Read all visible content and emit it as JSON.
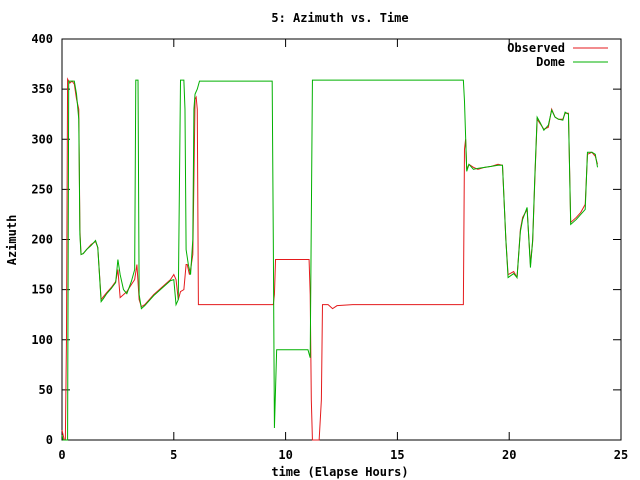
{
  "chart_data": {
    "type": "line",
    "title": "5: Azimuth vs. Time",
    "xlabel": "time (Elapse Hours)",
    "ylabel": "Azimuth",
    "xlim": [
      0,
      25
    ],
    "ylim": [
      0,
      400
    ],
    "xticks": [
      0,
      5,
      10,
      15,
      20,
      25
    ],
    "yticks": [
      0,
      50,
      100,
      150,
      200,
      250,
      300,
      350,
      400
    ],
    "grid": false,
    "legend_position": "top-right",
    "series": [
      {
        "name": "Observed",
        "color": "#e41a1c",
        "points": [
          [
            0.0,
            10
          ],
          [
            0.05,
            5
          ],
          [
            0.1,
            0
          ],
          [
            0.15,
            0
          ],
          [
            0.2,
            100
          ],
          [
            0.25,
            360
          ],
          [
            0.3,
            358
          ],
          [
            0.35,
            356
          ],
          [
            0.45,
            358
          ],
          [
            0.55,
            355
          ],
          [
            0.65,
            340
          ],
          [
            0.75,
            330
          ],
          [
            0.8,
            210
          ],
          [
            0.85,
            185
          ],
          [
            0.95,
            186
          ],
          [
            1.1,
            190
          ],
          [
            1.3,
            195
          ],
          [
            1.5,
            198
          ],
          [
            1.6,
            192
          ],
          [
            1.75,
            140
          ],
          [
            1.85,
            143
          ],
          [
            2.0,
            147
          ],
          [
            2.2,
            152
          ],
          [
            2.4,
            158
          ],
          [
            2.5,
            170
          ],
          [
            2.6,
            142
          ],
          [
            2.75,
            145
          ],
          [
            2.9,
            148
          ],
          [
            3.1,
            155
          ],
          [
            3.25,
            160
          ],
          [
            3.35,
            175
          ],
          [
            3.45,
            140
          ],
          [
            3.55,
            133
          ],
          [
            3.7,
            135
          ],
          [
            3.9,
            140
          ],
          [
            4.1,
            145
          ],
          [
            4.35,
            150
          ],
          [
            4.6,
            155
          ],
          [
            4.85,
            160
          ],
          [
            5.0,
            165
          ],
          [
            5.1,
            160
          ],
          [
            5.2,
            140
          ],
          [
            5.3,
            148
          ],
          [
            5.45,
            150
          ],
          [
            5.55,
            175
          ],
          [
            5.6,
            175
          ],
          [
            5.7,
            165
          ],
          [
            5.75,
            170
          ],
          [
            5.85,
            185
          ],
          [
            5.9,
            260
          ],
          [
            5.95,
            340
          ],
          [
            6.0,
            342
          ],
          [
            6.05,
            330
          ],
          [
            6.1,
            135
          ],
          [
            6.6,
            135
          ],
          [
            7.5,
            135
          ],
          [
            8.5,
            135
          ],
          [
            9.45,
            135
          ],
          [
            9.5,
            145
          ],
          [
            9.55,
            180
          ],
          [
            10.5,
            180
          ],
          [
            11.0,
            180
          ],
          [
            11.05,
            180
          ],
          [
            11.1,
            145
          ],
          [
            11.15,
            40
          ],
          [
            11.2,
            0
          ],
          [
            11.5,
            0
          ],
          [
            11.6,
            40
          ],
          [
            11.65,
            135
          ],
          [
            11.9,
            135
          ],
          [
            12.1,
            131
          ],
          [
            12.3,
            134
          ],
          [
            13.0,
            135
          ],
          [
            14.5,
            135
          ],
          [
            16.0,
            135
          ],
          [
            17.5,
            135
          ],
          [
            17.95,
            135
          ],
          [
            18.0,
            290
          ],
          [
            18.05,
            300
          ],
          [
            18.1,
            270
          ],
          [
            18.2,
            275
          ],
          [
            18.4,
            272
          ],
          [
            18.6,
            270
          ],
          [
            18.9,
            272
          ],
          [
            19.2,
            273
          ],
          [
            19.5,
            275
          ],
          [
            19.7,
            274
          ],
          [
            19.85,
            200
          ],
          [
            19.95,
            165
          ],
          [
            20.2,
            168
          ],
          [
            20.35,
            162
          ],
          [
            20.5,
            210
          ],
          [
            20.6,
            222
          ],
          [
            20.8,
            230
          ],
          [
            20.95,
            175
          ],
          [
            21.05,
            198
          ],
          [
            21.15,
            262
          ],
          [
            21.25,
            320
          ],
          [
            21.4,
            315
          ],
          [
            21.55,
            310
          ],
          [
            21.75,
            312
          ],
          [
            21.9,
            330
          ],
          [
            22.05,
            322
          ],
          [
            22.2,
            320
          ],
          [
            22.4,
            320
          ],
          [
            22.5,
            326
          ],
          [
            22.65,
            326
          ],
          [
            22.75,
            217
          ],
          [
            23.0,
            222
          ],
          [
            23.2,
            227
          ],
          [
            23.4,
            235
          ],
          [
            23.5,
            285
          ],
          [
            23.7,
            287
          ],
          [
            23.85,
            283
          ],
          [
            23.95,
            275
          ]
        ]
      },
      {
        "name": "Dome",
        "color": "#00b000",
        "points": [
          [
            0.0,
            5
          ],
          [
            0.05,
            0
          ],
          [
            0.25,
            0
          ],
          [
            0.3,
            358
          ],
          [
            0.45,
            358
          ],
          [
            0.55,
            358
          ],
          [
            0.65,
            345
          ],
          [
            0.75,
            320
          ],
          [
            0.8,
            205
          ],
          [
            0.85,
            185
          ],
          [
            0.95,
            186
          ],
          [
            1.1,
            190
          ],
          [
            1.3,
            194
          ],
          [
            1.5,
            199
          ],
          [
            1.6,
            192
          ],
          [
            1.75,
            138
          ],
          [
            1.85,
            141
          ],
          [
            2.0,
            146
          ],
          [
            2.2,
            151
          ],
          [
            2.4,
            157
          ],
          [
            2.5,
            180
          ],
          [
            2.6,
            165
          ],
          [
            2.75,
            150
          ],
          [
            2.9,
            146
          ],
          [
            3.1,
            158
          ],
          [
            3.25,
            170
          ],
          [
            3.3,
            359
          ],
          [
            3.4,
            359
          ],
          [
            3.45,
            145
          ],
          [
            3.55,
            131
          ],
          [
            3.7,
            134
          ],
          [
            3.9,
            139
          ],
          [
            4.1,
            144
          ],
          [
            4.35,
            149
          ],
          [
            4.6,
            154
          ],
          [
            4.85,
            159
          ],
          [
            5.0,
            160
          ],
          [
            5.1,
            135
          ],
          [
            5.2,
            140
          ],
          [
            5.3,
            359
          ],
          [
            5.45,
            359
          ],
          [
            5.5,
            330
          ],
          [
            5.55,
            190
          ],
          [
            5.65,
            175
          ],
          [
            5.75,
            165
          ],
          [
            5.85,
            200
          ],
          [
            5.9,
            330
          ],
          [
            5.95,
            345
          ],
          [
            6.05,
            350
          ],
          [
            6.15,
            358
          ],
          [
            7.0,
            358
          ],
          [
            8.0,
            358
          ],
          [
            9.4,
            358
          ],
          [
            9.45,
            200
          ],
          [
            9.5,
            12
          ],
          [
            9.6,
            90
          ],
          [
            10.5,
            90
          ],
          [
            11.0,
            90
          ],
          [
            11.1,
            82
          ],
          [
            11.2,
            359
          ],
          [
            13.0,
            359
          ],
          [
            15.0,
            359
          ],
          [
            17.95,
            359
          ],
          [
            18.0,
            338
          ],
          [
            18.1,
            268
          ],
          [
            18.2,
            275
          ],
          [
            18.4,
            270
          ],
          [
            18.6,
            271
          ],
          [
            18.9,
            272
          ],
          [
            19.2,
            273
          ],
          [
            19.5,
            274
          ],
          [
            19.7,
            274
          ],
          [
            19.85,
            200
          ],
          [
            19.95,
            162
          ],
          [
            20.2,
            166
          ],
          [
            20.35,
            162
          ],
          [
            20.5,
            208
          ],
          [
            20.6,
            220
          ],
          [
            20.8,
            232
          ],
          [
            20.95,
            172
          ],
          [
            21.05,
            200
          ],
          [
            21.15,
            265
          ],
          [
            21.25,
            322
          ],
          [
            21.4,
            316
          ],
          [
            21.55,
            309
          ],
          [
            21.75,
            314
          ],
          [
            21.9,
            329
          ],
          [
            22.05,
            322
          ],
          [
            22.2,
            320
          ],
          [
            22.4,
            319
          ],
          [
            22.5,
            327
          ],
          [
            22.65,
            325
          ],
          [
            22.75,
            215
          ],
          [
            23.0,
            220
          ],
          [
            23.2,
            225
          ],
          [
            23.4,
            230
          ],
          [
            23.5,
            287
          ],
          [
            23.7,
            287
          ],
          [
            23.85,
            285
          ],
          [
            23.95,
            272
          ]
        ]
      }
    ]
  }
}
